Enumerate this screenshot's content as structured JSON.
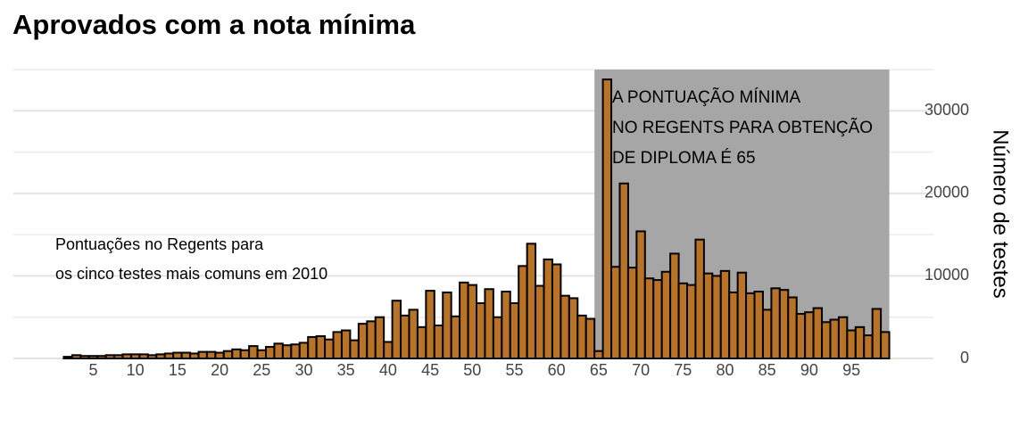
{
  "chart_data": {
    "type": "bar",
    "title": "Aprovados com a nota mínima",
    "y_axis_label": "Número de testes",
    "annotations": [
      [
        "Pontuações no Regents para",
        "os cinco testes mais comuns em 2010"
      ],
      [
        "A PONTUAÇÃO MÍNIMA",
        "NO REGENTS PARA OBTENÇÃO",
        "DE DIPLOMA É 65"
      ]
    ],
    "highlight_range": [
      65,
      100
    ],
    "x": [
      2,
      3,
      4,
      5,
      6,
      7,
      8,
      9,
      10,
      11,
      12,
      13,
      14,
      15,
      16,
      17,
      18,
      19,
      20,
      21,
      22,
      23,
      24,
      25,
      26,
      27,
      28,
      29,
      30,
      31,
      32,
      33,
      34,
      35,
      36,
      37,
      38,
      39,
      40,
      41,
      42,
      43,
      44,
      45,
      46,
      47,
      48,
      49,
      50,
      51,
      52,
      53,
      54,
      55,
      56,
      57,
      58,
      59,
      60,
      61,
      62,
      63,
      64,
      65,
      66,
      67,
      68,
      69,
      70,
      71,
      72,
      73,
      74,
      75,
      76,
      77,
      78,
      79,
      80,
      81,
      82,
      83,
      84,
      85,
      86,
      87,
      88,
      89,
      90,
      91,
      92,
      93,
      94,
      95,
      96,
      97,
      98,
      99
    ],
    "values": [
      200,
      400,
      300,
      300,
      300,
      400,
      400,
      500,
      500,
      500,
      400,
      500,
      600,
      700,
      700,
      600,
      800,
      800,
      700,
      900,
      1100,
      1000,
      1500,
      1000,
      1400,
      1800,
      1600,
      1700,
      1900,
      2600,
      2700,
      2300,
      3200,
      3400,
      2200,
      4200,
      4500,
      5000,
      2000,
      7000,
      5200,
      5900,
      3800,
      8200,
      4000,
      8000,
      5100,
      9200,
      8900,
      6700,
      8400,
      5000,
      8100,
      6700,
      11200,
      13900,
      8800,
      12000,
      11400,
      7600,
      7300,
      5200,
      4800,
      900,
      33800,
      11100,
      21200,
      11000,
      15400,
      9700,
      9500,
      10500,
      12700,
      9100,
      8900,
      14400,
      10300,
      10000,
      10600,
      8000,
      10400,
      7900,
      8100,
      5900,
      8500,
      8300,
      7400,
      5400,
      5600,
      6100,
      4400,
      4700,
      5000,
      3400,
      3800,
      2800,
      6000,
      3200
    ],
    "color": "#b87327",
    "xlim": [
      0.5,
      100.5
    ],
    "xticks": [
      5,
      10,
      15,
      20,
      25,
      30,
      35,
      40,
      45,
      50,
      55,
      60,
      65,
      70,
      75,
      80,
      85,
      90,
      95
    ],
    "ylim": [
      0,
      35000
    ],
    "yticks": [
      0,
      10000,
      20000,
      30000
    ],
    "minor_yticks": [
      5000,
      15000,
      25000,
      35000
    ],
    "grid": true
  }
}
